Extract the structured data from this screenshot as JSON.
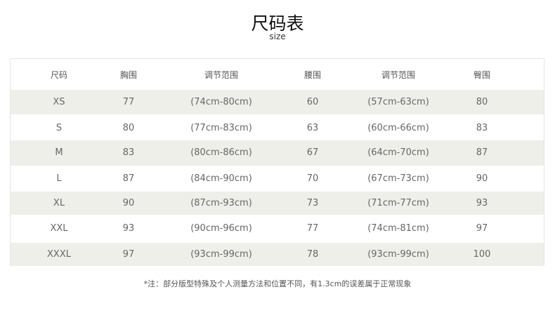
{
  "title": "尺码表",
  "subtitle": "size",
  "table": {
    "headers": [
      "尺码",
      "胸围",
      "调节范围",
      "腰围",
      "调节范围",
      "臀围"
    ],
    "rows": [
      [
        "XS",
        "77",
        "(74cm-80cm)",
        "60",
        "(57cm-63cm)",
        "80"
      ],
      [
        "S",
        "80",
        "(77cm-83cm)",
        "63",
        "(60cm-66cm)",
        "83"
      ],
      [
        "M",
        "83",
        "(80cm-86cm)",
        "67",
        "(64cm-70cm)",
        "87"
      ],
      [
        "L",
        "87",
        "(84cm-90cm)",
        "70",
        "(67cm-73cm)",
        "90"
      ],
      [
        "XL",
        "90",
        "(87cm-93cm)",
        "73",
        "(71cm-77cm)",
        "93"
      ],
      [
        "XXL",
        "93",
        "(90cm-96cm)",
        "77",
        "(74cm-81cm)",
        "97"
      ],
      [
        "XXXL",
        "97",
        "(93cm-99cm)",
        "78",
        "(93cm-99cm)",
        "100"
      ]
    ],
    "shade_color": "#efefea"
  },
  "note": "*注：部分版型特殊及个人测量方法和位置不同，有1.3cm的误差属于正常现象"
}
